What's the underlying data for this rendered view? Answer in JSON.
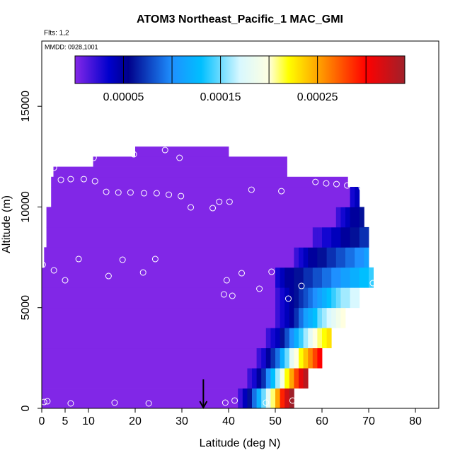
{
  "chart_data": {
    "type": "heatmap",
    "title": "ATOM3 Northeast_Pacific_1 MAC_GMI",
    "subtitle": "Flts: 1,2",
    "annotation": "MMDD: 0928,1001",
    "xlabel": "Latitude (deg N)",
    "ylabel": "Altitude (m)",
    "xlim": [
      0,
      85
    ],
    "ylim": [
      0,
      18240
    ],
    "xticks": [
      0,
      5,
      10,
      20,
      30,
      40,
      50,
      60,
      70,
      80
    ],
    "yticks": [
      0,
      5000,
      10000,
      15000
    ],
    "clim": [
      0,
      0.00034
    ],
    "colormap": [
      {
        "value": 0,
        "color": "#8528e8"
      },
      {
        "value": 3.5e-05,
        "color": "#0000cd"
      },
      {
        "value": 5.5e-05,
        "color": "#00008b"
      },
      {
        "value": 0.0001,
        "color": "#1e90ff"
      },
      {
        "value": 0.00013,
        "color": "#00bfff"
      },
      {
        "value": 0.00017,
        "color": "#d8f8ff"
      },
      {
        "value": 0.0002,
        "color": "#ffffe0"
      },
      {
        "value": 0.00022,
        "color": "#ffff00"
      },
      {
        "value": 0.00025,
        "color": "#ffa500"
      },
      {
        "value": 0.0003,
        "color": "#ff0000"
      },
      {
        "value": 0.00034,
        "color": "#a0202a"
      }
    ],
    "colorbar_lines": [
      5e-05,
      0.0001,
      0.00015,
      0.0002,
      0.00025,
      0.0003
    ],
    "colorbar_ticks": [
      {
        "value": 5e-05,
        "label": "0.00005"
      },
      {
        "value": 0.00015,
        "label": "0.00015"
      },
      {
        "value": 0.00025,
        "label": "0.00025"
      }
    ],
    "cells": [
      {
        "alt": [
          0,
          1000
        ],
        "lat_edges": [
          0,
          42,
          43,
          44,
          45,
          46,
          47,
          48,
          49,
          50,
          51,
          52,
          53,
          54
        ],
        "values": [
          1e-06,
          2e-05,
          4e-05,
          6e-05,
          9e-05,
          0.00012,
          0.00015,
          0.00018,
          0.00021,
          0.00025,
          0.00029,
          0.00032,
          0.00034
        ]
      },
      {
        "alt": [
          1000,
          2000
        ],
        "lat_edges": [
          0,
          44,
          45,
          46,
          47,
          48,
          49,
          50,
          51,
          52,
          53,
          54,
          55,
          56,
          57
        ],
        "values": [
          1e-06,
          2e-05,
          3e-05,
          5e-05,
          7e-05,
          0.0001,
          0.00013,
          0.00016,
          0.00019,
          0.00022,
          0.00025,
          0.00028,
          0.00031,
          0.00033
        ]
      },
      {
        "alt": [
          2000,
          3000
        ],
        "lat_edges": [
          0,
          46,
          47,
          48,
          49,
          50,
          51,
          52,
          53,
          54,
          55,
          56,
          57,
          58,
          59,
          60
        ],
        "values": [
          1e-06,
          2e-05,
          3e-05,
          5e-05,
          7e-05,
          9e-05,
          0.00012,
          0.00015,
          0.00018,
          0.0002,
          0.00022,
          0.00024,
          0.00026,
          0.00028,
          0.0003
        ]
      },
      {
        "alt": [
          3000,
          4000
        ],
        "lat_edges": [
          0,
          48,
          49,
          50,
          51,
          52,
          53,
          54,
          55,
          56,
          57,
          58,
          59,
          60,
          61,
          62
        ],
        "values": [
          1e-06,
          2e-05,
          3e-05,
          4e-05,
          6e-05,
          8e-05,
          0.0001,
          0.00012,
          0.00014,
          0.00016,
          0.00018,
          0.0002,
          0.00021,
          0.00022,
          0.00023
        ]
      },
      {
        "alt": [
          4000,
          5000
        ],
        "lat_edges": [
          0,
          50,
          51,
          52,
          53,
          54,
          55,
          56,
          57,
          58,
          59,
          60,
          61,
          62,
          63,
          64,
          65
        ],
        "values": [
          1e-06,
          2e-05,
          3e-05,
          4e-05,
          5e-05,
          7e-05,
          9e-05,
          0.00011,
          0.00012,
          0.00013,
          0.00015,
          0.00016,
          0.00017,
          0.00018,
          0.00019,
          0.0002
        ]
      },
      {
        "alt": [
          5000,
          6000
        ],
        "lat_edges": [
          0,
          50,
          51,
          52,
          53,
          54,
          55,
          56,
          57,
          58,
          59,
          60,
          61,
          62,
          63,
          64,
          65,
          66,
          67,
          68
        ],
        "values": [
          1e-06,
          2e-05,
          3e-05,
          4e-05,
          5e-05,
          6e-05,
          7e-05,
          8e-05,
          9e-05,
          0.0001,
          0.00011,
          0.00012,
          0.00013,
          0.00014,
          0.00015,
          0.00016,
          0.00016,
          0.00017,
          0.00017
        ]
      },
      {
        "alt": [
          6000,
          7000
        ],
        "lat_edges": [
          0,
          50,
          51,
          52,
          53,
          54,
          55,
          56,
          57,
          58,
          59,
          60,
          61,
          62,
          63,
          64,
          65,
          66,
          67,
          68,
          69,
          70,
          71
        ],
        "values": [
          1e-06,
          3e-05,
          4e-05,
          5e-05,
          5e-05,
          6e-05,
          6e-05,
          7e-05,
          7e-05,
          8e-05,
          8e-05,
          9e-05,
          9e-05,
          0.0001,
          0.0001,
          0.00011,
          0.00011,
          0.00012,
          0.00012,
          0.00013,
          0.00013,
          0.00014
        ]
      },
      {
        "alt": [
          7000,
          8000
        ],
        "lat_edges": [
          0.5,
          54,
          55,
          56,
          57,
          58,
          59,
          60,
          61,
          62,
          63,
          64,
          65,
          66,
          67,
          68,
          69,
          70
        ],
        "values": [
          1e-06,
          2e-05,
          3e-05,
          4e-05,
          5e-05,
          5e-05,
          6e-05,
          6e-05,
          7e-05,
          7e-05,
          8e-05,
          8e-05,
          9e-05,
          9e-05,
          0.0001,
          0.0001,
          0.00011
        ]
      },
      {
        "alt": [
          8000,
          9000
        ],
        "lat_edges": [
          1,
          58,
          59,
          60,
          61,
          62,
          63,
          64,
          65,
          66,
          67,
          68,
          69,
          70
        ],
        "values": [
          1e-06,
          2e-05,
          2e-05,
          3e-05,
          3e-05,
          4e-05,
          4e-05,
          5e-05,
          5e-05,
          6e-05,
          6e-05,
          7e-05,
          7e-05
        ]
      },
      {
        "alt": [
          9000,
          10000
        ],
        "lat_edges": [
          1,
          63,
          64,
          65,
          66,
          67,
          68,
          69
        ],
        "values": [
          1e-06,
          2e-05,
          3e-05,
          4e-05,
          5e-05,
          5e-05,
          6e-05
        ]
      },
      {
        "alt": [
          10000,
          11000
        ],
        "lat_edges": [
          2,
          66,
          67,
          68
        ],
        "values": [
          1e-06,
          3e-05,
          4e-05
        ]
      },
      {
        "alt": [
          11000,
          11500
        ],
        "lat_edges": [
          2,
          65.5
        ],
        "values": [
          1e-06
        ]
      },
      {
        "alt": [
          11500,
          12000
        ],
        "lat_edges": [
          2.5,
          52.5
        ],
        "values": [
          1e-06
        ]
      },
      {
        "alt": [
          12000,
          12500
        ],
        "lat_edges": [
          11,
          52.5
        ],
        "values": [
          1e-06
        ]
      },
      {
        "alt": [
          12500,
          13000
        ],
        "lat_edges": [
          20,
          40
        ],
        "values": [
          1e-06
        ]
      }
    ],
    "points": {
      "x": [
        0.5,
        1.2,
        6.2,
        15.6,
        22.9,
        39.3,
        41.3,
        48,
        53.7,
        0.2,
        2.6,
        5,
        7.9,
        14.3,
        17.3,
        21.7,
        24.3,
        39,
        39.6,
        40.8,
        42.8,
        46.6,
        49.2,
        52.8,
        55.6,
        70.9,
        2.6,
        4.1,
        6.2,
        9,
        11.4,
        11.1,
        13.8,
        16.4,
        19,
        21.9,
        24.6,
        27.2,
        29.8,
        29.5,
        26.4,
        19.7,
        31.9,
        36.6,
        38,
        40.2,
        44.9,
        51.3,
        58.6,
        60.9,
        63.1,
        65.4,
        68.5
      ],
      "y": [
        316,
        350,
        246,
        281,
        246,
        281,
        387,
        281,
        387,
        7133,
        6852,
        6360,
        7414,
        6571,
        7379,
        6746,
        7414,
        5658,
        6360,
        5587,
        6711,
        5939,
        6782,
        5447,
        6079,
        6219,
        11947,
        11349,
        11384,
        11384,
        11279,
        12439,
        10752,
        10717,
        10717,
        10682,
        10682,
        10611,
        10541,
        12439,
        12826,
        12615,
        9979,
        9944,
        10260,
        10260,
        10857,
        10787,
        11244,
        11173,
        11138,
        11068,
        10963
      ],
      "color": "#ffffff"
    },
    "marker_lat": 34.6,
    "marker_top": 700
  }
}
